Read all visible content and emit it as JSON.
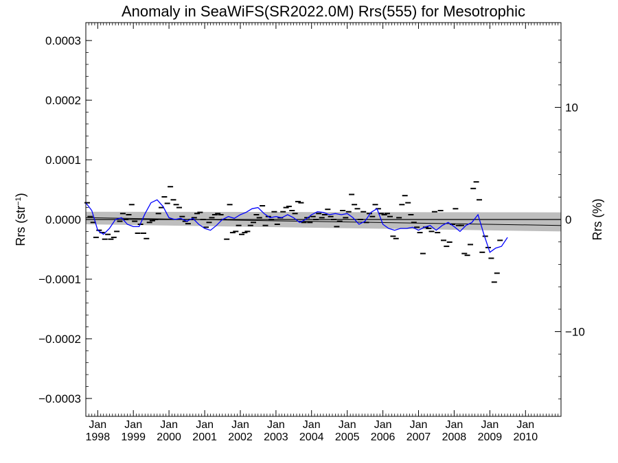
{
  "chart_data": {
    "type": "scatter",
    "title": "Anomaly in SeaWiFS(SR2022.0M) Rrs(555) for Mesotrophic",
    "ylabel_main": "Rrs (str",
    "ylabel_sup": "−1",
    "ylabel_close": ")",
    "y2label": "Rrs (%)",
    "xlim": [
      "1997-09-01",
      "2010-12-31"
    ],
    "ylim": [
      -0.00033,
      0.00033
    ],
    "y2lim": [
      -17.55,
      17.55
    ],
    "x_ticks": [
      {
        "date": "1998-01-01",
        "month": "Jan",
        "year": "1998"
      },
      {
        "date": "1999-01-01",
        "month": "Jan",
        "year": "1999"
      },
      {
        "date": "2000-01-01",
        "month": "Jan",
        "year": "2000"
      },
      {
        "date": "2001-01-01",
        "month": "Jan",
        "year": "2001"
      },
      {
        "date": "2002-01-01",
        "month": "Jan",
        "year": "2002"
      },
      {
        "date": "2003-01-01",
        "month": "Jan",
        "year": "2003"
      },
      {
        "date": "2004-01-01",
        "month": "Jan",
        "year": "2004"
      },
      {
        "date": "2005-01-01",
        "month": "Jan",
        "year": "2005"
      },
      {
        "date": "2006-01-01",
        "month": "Jan",
        "year": "2006"
      },
      {
        "date": "2007-01-01",
        "month": "Jan",
        "year": "2007"
      },
      {
        "date": "2008-01-01",
        "month": "Jan",
        "year": "2008"
      },
      {
        "date": "2009-01-01",
        "month": "Jan",
        "year": "2009"
      },
      {
        "date": "2010-01-01",
        "month": "Jan",
        "year": "2010"
      }
    ],
    "y_ticks": [
      {
        "value": 0.0003,
        "label": "0.0003"
      },
      {
        "value": 0.0002,
        "label": "0.0002"
      },
      {
        "value": 0.0001,
        "label": "0.0001"
      },
      {
        "value": 0.0,
        "label": "0.0000"
      },
      {
        "value": -0.0001,
        "label": "−0.0001"
      },
      {
        "value": -0.0002,
        "label": "−0.0002"
      },
      {
        "value": -0.0003,
        "label": "−0.0003"
      }
    ],
    "y2_ticks": [
      {
        "value": 10,
        "label": "10"
      },
      {
        "value": 0,
        "label": "0"
      },
      {
        "value": -10,
        "label": "−10"
      }
    ],
    "zero_line": 0.0,
    "colors": {
      "points": "#000000",
      "smooth": "#0000ff",
      "band": "#bebebe",
      "trend": "#000000"
    },
    "monthly_anomalies": [
      {
        "x": "1997-09-15",
        "y": 2.8e-05
      },
      {
        "x": "1997-10-15",
        "y": 5e-06
      },
      {
        "x": "1997-11-15",
        "y": -5e-06
      },
      {
        "x": "1997-12-15",
        "y": -3e-05
      },
      {
        "x": "1998-01-15",
        "y": -1.8e-05
      },
      {
        "x": "1998-02-15",
        "y": -2.2e-05
      },
      {
        "x": "1998-03-15",
        "y": -3.3e-05
      },
      {
        "x": "1998-04-15",
        "y": -2.5e-05
      },
      {
        "x": "1998-05-15",
        "y": -3.3e-05
      },
      {
        "x": "1998-06-15",
        "y": -3e-05
      },
      {
        "x": "1998-07-15",
        "y": -2e-05
      },
      {
        "x": "1998-08-15",
        "y": -3e-06
      },
      {
        "x": "1998-09-15",
        "y": 1e-05
      },
      {
        "x": "1998-10-15",
        "y": 0.0
      },
      {
        "x": "1998-11-15",
        "y": 8e-06
      },
      {
        "x": "1998-12-15",
        "y": 2.5e-05
      },
      {
        "x": "1999-01-15",
        "y": -3e-06
      },
      {
        "x": "1999-02-15",
        "y": -2.3e-05
      },
      {
        "x": "1999-03-15",
        "y": -8e-06
      },
      {
        "x": "1999-04-15",
        "y": -2.3e-05
      },
      {
        "x": "1999-05-15",
        "y": -3.2e-05
      },
      {
        "x": "1999-06-15",
        "y": -5e-06
      },
      {
        "x": "1999-07-15",
        "y": -2e-06
      },
      {
        "x": "1999-08-15",
        "y": 0.0
      },
      {
        "x": "1999-09-15",
        "y": 1e-05
      },
      {
        "x": "1999-10-15",
        "y": 2e-05
      },
      {
        "x": "1999-11-15",
        "y": 3.8e-05
      },
      {
        "x": "1999-12-15",
        "y": 2.7e-05
      },
      {
        "x": "2000-01-15",
        "y": 5.5e-05
      },
      {
        "x": "2000-02-15",
        "y": 3.3e-05
      },
      {
        "x": "2000-03-15",
        "y": 2.5e-05
      },
      {
        "x": "2000-04-15",
        "y": 2e-05
      },
      {
        "x": "2000-05-15",
        "y": 5e-06
      },
      {
        "x": "2000-06-15",
        "y": -3e-06
      },
      {
        "x": "2000-07-15",
        "y": -7e-06
      },
      {
        "x": "2000-08-15",
        "y": 0.0
      },
      {
        "x": "2000-09-15",
        "y": 3e-06
      },
      {
        "x": "2000-10-15",
        "y": 1e-05
      },
      {
        "x": "2000-11-15",
        "y": 1.2e-05
      },
      {
        "x": "2000-12-15",
        "y": 0.0
      },
      {
        "x": "2001-01-15",
        "y": -1.3e-05
      },
      {
        "x": "2001-02-15",
        "y": -5e-06
      },
      {
        "x": "2001-03-15",
        "y": 3e-06
      },
      {
        "x": "2001-04-15",
        "y": 8e-06
      },
      {
        "x": "2001-05-15",
        "y": 1e-05
      },
      {
        "x": "2001-06-15",
        "y": 8e-06
      },
      {
        "x": "2001-07-15",
        "y": 0.0
      },
      {
        "x": "2001-08-15",
        "y": -3.3e-05
      },
      {
        "x": "2001-09-15",
        "y": 2.5e-05
      },
      {
        "x": "2001-10-15",
        "y": -2.2e-05
      },
      {
        "x": "2001-11-15",
        "y": -2e-05
      },
      {
        "x": "2001-12-15",
        "y": -1e-05
      },
      {
        "x": "2002-01-15",
        "y": -2.5e-05
      },
      {
        "x": "2002-02-15",
        "y": -2.2e-05
      },
      {
        "x": "2002-03-15",
        "y": -2e-05
      },
      {
        "x": "2002-04-15",
        "y": -1e-05
      },
      {
        "x": "2002-05-15",
        "y": -5e-06
      },
      {
        "x": "2002-06-15",
        "y": 8e-06
      },
      {
        "x": "2002-07-15",
        "y": 3e-06
      },
      {
        "x": "2002-08-15",
        "y": 2.3e-05
      },
      {
        "x": "2002-09-15",
        "y": -1e-05
      },
      {
        "x": "2002-10-15",
        "y": 5e-06
      },
      {
        "x": "2002-11-15",
        "y": 0.0
      },
      {
        "x": "2002-12-15",
        "y": 1.3e-05
      },
      {
        "x": "2003-01-15",
        "y": -8e-06
      },
      {
        "x": "2003-02-15",
        "y": 3e-06
      },
      {
        "x": "2003-03-15",
        "y": 1.3e-05
      },
      {
        "x": "2003-04-15",
        "y": 2e-05
      },
      {
        "x": "2003-05-15",
        "y": 2.2e-05
      },
      {
        "x": "2003-06-15",
        "y": 1.5e-05
      },
      {
        "x": "2003-07-15",
        "y": 1e-05
      },
      {
        "x": "2003-08-15",
        "y": 3e-05
      },
      {
        "x": "2003-09-15",
        "y": 2.8e-05
      },
      {
        "x": "2003-10-15",
        "y": -5e-06
      },
      {
        "x": "2003-11-15",
        "y": 3e-06
      },
      {
        "x": "2003-12-15",
        "y": -5e-06
      },
      {
        "x": "2004-01-15",
        "y": 5e-06
      },
      {
        "x": "2004-02-15",
        "y": 0.0
      },
      {
        "x": "2004-03-15",
        "y": 1e-05
      },
      {
        "x": "2004-04-15",
        "y": 3e-06
      },
      {
        "x": "2004-05-15",
        "y": 8e-06
      },
      {
        "x": "2004-06-15",
        "y": 1.7e-05
      },
      {
        "x": "2004-07-15",
        "y": 5e-06
      },
      {
        "x": "2004-08-15",
        "y": 0.0
      },
      {
        "x": "2004-09-15",
        "y": -1.2e-05
      },
      {
        "x": "2004-10-15",
        "y": -3e-06
      },
      {
        "x": "2004-11-15",
        "y": 1.5e-05
      },
      {
        "x": "2004-12-15",
        "y": 3e-06
      },
      {
        "x": "2005-01-15",
        "y": 1.3e-05
      },
      {
        "x": "2005-02-15",
        "y": 4.2e-05
      },
      {
        "x": "2005-03-15",
        "y": 2.5e-05
      },
      {
        "x": "2005-04-15",
        "y": 1.8e-05
      },
      {
        "x": "2005-05-15",
        "y": 0.0
      },
      {
        "x": "2005-06-15",
        "y": 1.3e-05
      },
      {
        "x": "2005-07-15",
        "y": -5e-06
      },
      {
        "x": "2005-08-15",
        "y": 1e-05
      },
      {
        "x": "2005-09-15",
        "y": 5e-06
      },
      {
        "x": "2005-10-15",
        "y": 2.5e-05
      },
      {
        "x": "2005-11-15",
        "y": 1.8e-05
      },
      {
        "x": "2005-12-15",
        "y": 1e-05
      },
      {
        "x": "2006-01-15",
        "y": 8e-06
      },
      {
        "x": "2006-02-15",
        "y": 1e-05
      },
      {
        "x": "2006-03-15",
        "y": 5e-06
      },
      {
        "x": "2006-04-15",
        "y": -2.8e-05
      },
      {
        "x": "2006-05-15",
        "y": -3.2e-05
      },
      {
        "x": "2006-06-15",
        "y": 3e-06
      },
      {
        "x": "2006-07-15",
        "y": 2.5e-05
      },
      {
        "x": "2006-08-15",
        "y": 4e-05
      },
      {
        "x": "2006-09-15",
        "y": 2.8e-05
      },
      {
        "x": "2006-10-15",
        "y": 8e-06
      },
      {
        "x": "2006-11-15",
        "y": -5e-06
      },
      {
        "x": "2006-12-15",
        "y": -1.3e-05
      },
      {
        "x": "2007-01-15",
        "y": -2.2e-05
      },
      {
        "x": "2007-02-15",
        "y": -5.7e-05
      },
      {
        "x": "2007-03-15",
        "y": -1.3e-05
      },
      {
        "x": "2007-04-15",
        "y": -1.5e-05
      },
      {
        "x": "2007-05-15",
        "y": -2e-05
      },
      {
        "x": "2007-06-15",
        "y": 1.3e-05
      },
      {
        "x": "2007-07-15",
        "y": -2.2e-05
      },
      {
        "x": "2007-08-15",
        "y": 1.5e-05
      },
      {
        "x": "2007-09-15",
        "y": -3.5e-05
      },
      {
        "x": "2007-10-15",
        "y": -4.5e-05
      },
      {
        "x": "2007-11-15",
        "y": -3.8e-05
      },
      {
        "x": "2007-12-15",
        "y": -8e-06
      },
      {
        "x": "2008-01-15",
        "y": 1.8e-05
      },
      {
        "x": "2008-02-15",
        "y": -1e-05
      },
      {
        "x": "2008-03-15",
        "y": -1e-05
      },
      {
        "x": "2008-04-15",
        "y": -5.7e-05
      },
      {
        "x": "2008-05-15",
        "y": -6e-05
      },
      {
        "x": "2008-06-15",
        "y": -4.2e-05
      },
      {
        "x": "2008-07-15",
        "y": 5.2e-05
      },
      {
        "x": "2008-08-15",
        "y": 6.3e-05
      },
      {
        "x": "2008-09-15",
        "y": 3.3e-05
      },
      {
        "x": "2008-10-15",
        "y": -5.5e-05
      },
      {
        "x": "2008-11-15",
        "y": -2.8e-05
      },
      {
        "x": "2008-12-15",
        "y": -4.7e-05
      },
      {
        "x": "2009-01-15",
        "y": -6.5e-05
      },
      {
        "x": "2009-02-15",
        "y": -0.000105
      },
      {
        "x": "2009-03-15",
        "y": -9e-05
      },
      {
        "x": "2009-04-15",
        "y": -3.5e-05
      }
    ],
    "smoothed_series": [
      {
        "x": "1997-09-01",
        "y": 2.8e-05
      },
      {
        "x": "1997-11-01",
        "y": 1.5e-05
      },
      {
        "x": "1998-01-01",
        "y": -1.8e-05
      },
      {
        "x": "1998-03-01",
        "y": -2.5e-05
      },
      {
        "x": "1998-05-01",
        "y": -1.5e-05
      },
      {
        "x": "1998-07-01",
        "y": 0.0
      },
      {
        "x": "1998-09-01",
        "y": 3e-06
      },
      {
        "x": "1998-11-01",
        "y": -8e-06
      },
      {
        "x": "1999-01-01",
        "y": -1.2e-05
      },
      {
        "x": "1999-03-01",
        "y": -1.2e-05
      },
      {
        "x": "1999-05-01",
        "y": 1e-05
      },
      {
        "x": "1999-07-01",
        "y": 2.8e-05
      },
      {
        "x": "1999-09-01",
        "y": 3.3e-05
      },
      {
        "x": "1999-11-01",
        "y": 2.2e-05
      },
      {
        "x": "2000-01-01",
        "y": 3e-06
      },
      {
        "x": "2000-03-01",
        "y": 0.0
      },
      {
        "x": "2000-05-01",
        "y": 2e-06
      },
      {
        "x": "2000-07-01",
        "y": -3e-06
      },
      {
        "x": "2000-09-01",
        "y": 2e-06
      },
      {
        "x": "2000-11-01",
        "y": -8e-06
      },
      {
        "x": "2001-01-01",
        "y": -1.5e-05
      },
      {
        "x": "2001-03-01",
        "y": -1.8e-05
      },
      {
        "x": "2001-05-01",
        "y": -1e-05
      },
      {
        "x": "2001-07-01",
        "y": 0.0
      },
      {
        "x": "2001-09-01",
        "y": 5e-06
      },
      {
        "x": "2001-11-01",
        "y": 2e-06
      },
      {
        "x": "2002-01-01",
        "y": 8e-06
      },
      {
        "x": "2002-03-01",
        "y": 1.2e-05
      },
      {
        "x": "2002-05-01",
        "y": 1.8e-05
      },
      {
        "x": "2002-07-01",
        "y": 2e-05
      },
      {
        "x": "2002-09-01",
        "y": 1e-05
      },
      {
        "x": "2002-11-01",
        "y": 3e-06
      },
      {
        "x": "2003-01-01",
        "y": 5e-06
      },
      {
        "x": "2003-03-01",
        "y": 3e-06
      },
      {
        "x": "2003-05-01",
        "y": 8e-06
      },
      {
        "x": "2003-07-01",
        "y": 3e-06
      },
      {
        "x": "2003-09-01",
        "y": -5e-06
      },
      {
        "x": "2003-11-01",
        "y": 0.0
      },
      {
        "x": "2004-01-01",
        "y": 8e-06
      },
      {
        "x": "2004-03-01",
        "y": 1.3e-05
      },
      {
        "x": "2004-05-01",
        "y": 1.2e-05
      },
      {
        "x": "2004-07-01",
        "y": 8e-06
      },
      {
        "x": "2004-09-01",
        "y": 1e-05
      },
      {
        "x": "2004-11-01",
        "y": 8e-06
      },
      {
        "x": "2005-01-01",
        "y": 1e-05
      },
      {
        "x": "2005-03-01",
        "y": 3e-06
      },
      {
        "x": "2005-05-01",
        "y": -8e-06
      },
      {
        "x": "2005-07-01",
        "y": -3e-06
      },
      {
        "x": "2005-09-01",
        "y": 1.2e-05
      },
      {
        "x": "2005-11-01",
        "y": 1.8e-05
      },
      {
        "x": "2006-01-01",
        "y": -8e-06
      },
      {
        "x": "2006-03-01",
        "y": -1.5e-05
      },
      {
        "x": "2006-05-01",
        "y": -1.8e-05
      },
      {
        "x": "2006-07-01",
        "y": -1.5e-05
      },
      {
        "x": "2006-09-01",
        "y": -1.5e-05
      },
      {
        "x": "2006-11-01",
        "y": -1.3e-05
      },
      {
        "x": "2007-01-01",
        "y": -1.8e-05
      },
      {
        "x": "2007-03-01",
        "y": -1.3e-05
      },
      {
        "x": "2007-05-01",
        "y": -1e-05
      },
      {
        "x": "2007-07-01",
        "y": -1.8e-05
      },
      {
        "x": "2007-09-01",
        "y": -1e-05
      },
      {
        "x": "2007-11-01",
        "y": -5e-06
      },
      {
        "x": "2008-01-01",
        "y": -1.2e-05
      },
      {
        "x": "2008-03-01",
        "y": -2e-05
      },
      {
        "x": "2008-05-01",
        "y": -1e-05
      },
      {
        "x": "2008-07-01",
        "y": -5e-06
      },
      {
        "x": "2008-09-01",
        "y": 8e-06
      },
      {
        "x": "2008-11-01",
        "y": -2.5e-05
      },
      {
        "x": "2009-01-01",
        "y": -5.5e-05
      },
      {
        "x": "2009-03-01",
        "y": -4.8e-05
      },
      {
        "x": "2009-05-01",
        "y": -4.5e-05
      },
      {
        "x": "2009-07-01",
        "y": -3e-05
      }
    ],
    "trend_line": {
      "start": {
        "x": "1997-09-01",
        "y": 3e-06
      },
      "end": {
        "x": "2010-12-31",
        "y": -1e-05
      }
    },
    "confidence_band": {
      "start": {
        "x": "1997-09-01",
        "low": -8e-06,
        "high": 1.3e-05
      },
      "end": {
        "x": "2010-12-31",
        "low": -2e-05,
        "high": 1.2e-05
      }
    }
  }
}
